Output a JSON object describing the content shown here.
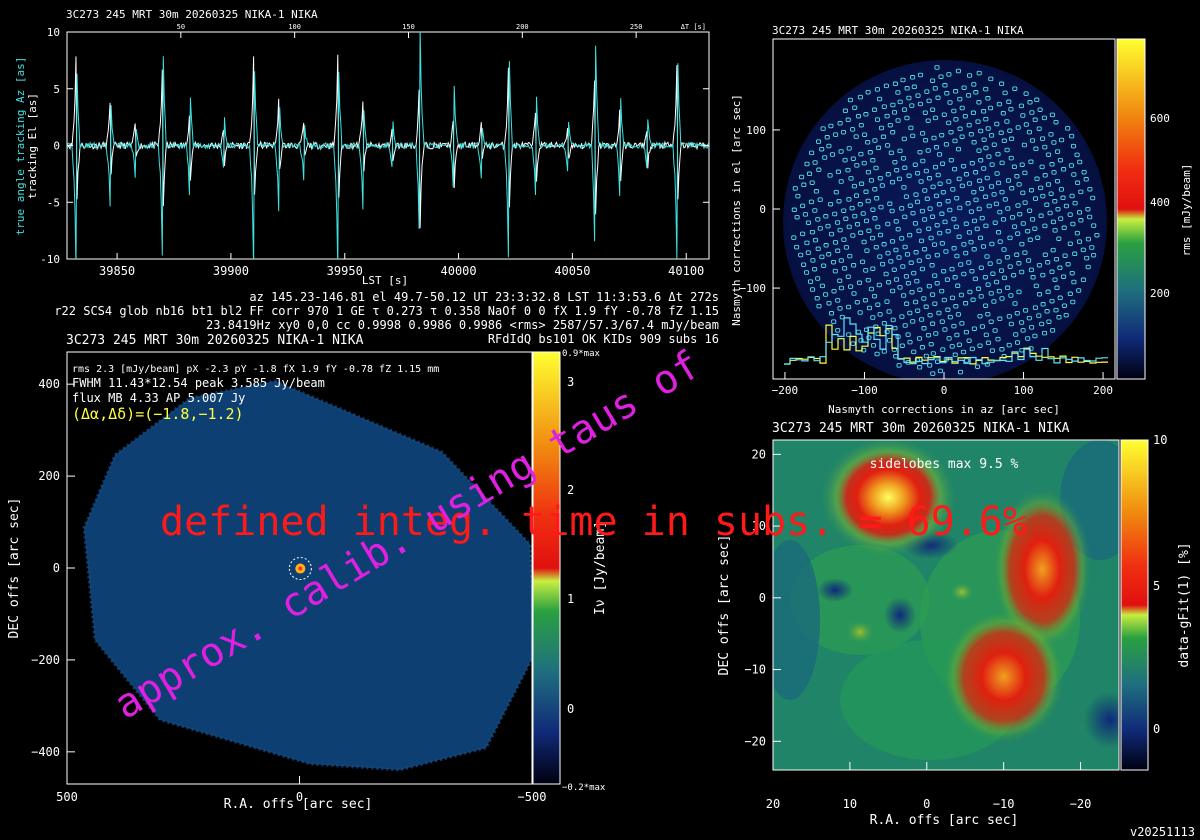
{
  "version": "v20251113",
  "overlays": {
    "wm1": "defined integ. time in subs. = 69.6%",
    "wm2": "approx. calib. using taus of",
    "wm_red_color": "#ff1a1a",
    "wm_mag_color": "#e020e0"
  },
  "panel_tracking": {
    "header": "3C273     245 MRT 30m  20260325 NIKA-1 NIKA",
    "top_ticks": [
      "50",
      "100",
      "150",
      "200",
      "250",
      "ΔT [s]"
    ],
    "xlabel": "LST [s]",
    "ylabel_cyan": "true angle tracking Az [as]",
    "ylabel_white": "tracking El [as]",
    "info": [
      "az 145.23-146.81 el 49.7-50.12 UT 23:3:32.8 LST 11:3:53.6 Δt 272s",
      "r22 SCS4 glob nb16 bt1 bl2 FF corr 970 1 GE τ 0.273 τ 0.358 NaOf 0 0 fX 1.9 fY -0.78 fZ 1.15",
      "23.8419Hz xy0 0,0 cc 0.9998 0.9986 0.9986 <rms> 2587/57.3/67.4 mJy/beam",
      "RFdIdQ bs101 OK KIDs 909 subs 16"
    ]
  },
  "panel_map": {
    "header": "3C273    245 MRT 30m  20260325 NIKA-1 NIKA",
    "info": [
      "rms 2.3 [mJy/beam] pX -2.3 pY -1.8 fX 1.9 fY -0.78 fZ 1.15 mm",
      "FWHM 11.43*12.54 peak 3.585 Jy/beam",
      "flux MB 4.33 AP 5.007 Jy",
      "(Δα,Δδ)=(−1.8,−1.2)"
    ],
    "xlabel": "R.A. offs [arc sec]",
    "ylabel": "DEC offs [arc sec]",
    "cbar_label": "Iν [Jy/beam]",
    "cbar_top": "0.9*max",
    "cbar_bottom": "−0.2*max",
    "cbar_ticks": [
      "3",
      "2",
      "1",
      "0"
    ]
  },
  "panel_kids": {
    "header": "3C273     245 MRT 30m  20260325 NIKA-1 NIKA",
    "xlabel": "Nasmyth corrections in az [arc sec]",
    "ylabel": "Nasmyth corrections in el [arc sec]",
    "cbar_label": "rms [mJy/beam]",
    "cbar_ticks": [
      "600",
      "400",
      "200"
    ]
  },
  "panel_residual": {
    "header": "3C273     245 MRT 30m  20260325 NIKA-1 NIKA",
    "annotation": "sidelobes max 9.5 %",
    "xlabel": "R.A. offs [arc sec]",
    "ylabel": "DEC offs [arc sec]",
    "cbar_label": "data-gFit(1) [%]",
    "cbar_ticks": [
      "10",
      "5",
      "0"
    ]
  },
  "chart_data": [
    {
      "type": "line",
      "x_axis": "LST [s]",
      "xlim": [
        39828,
        40110
      ],
      "ylim": [
        -10,
        10
      ],
      "x_ticks": [
        39850,
        39900,
        39950,
        40000,
        40050,
        40100
      ],
      "y_ticks": [
        -10,
        -5,
        0,
        5,
        10
      ],
      "top_x_ticks": [
        50,
        100,
        150,
        200,
        250
      ],
      "spike_lst": [
        39832,
        39847,
        39858,
        39870,
        39882,
        39897,
        39910,
        39921,
        39932,
        39947,
        39958,
        39971,
        39983,
        39998,
        40010,
        40022,
        40034,
        40048,
        40060,
        40071,
        40083,
        40096
      ],
      "series": [
        {
          "name": "true angle tracking Az [as]",
          "color": "#40e0e0"
        },
        {
          "name": "tracking El [as]",
          "color": "#ffffff"
        }
      ]
    },
    {
      "type": "heatmap",
      "xlim": [
        500,
        -500
      ],
      "ylim": [
        -470,
        470
      ],
      "x_ticks": [
        500,
        0,
        -500
      ],
      "y_ticks": [
        -400,
        -200,
        0,
        200,
        400
      ],
      "source_offset": [
        -1.8,
        -1.2
      ],
      "peak_jy_per_beam": 3.585
    },
    {
      "type": "scatter",
      "xlim": [
        -215,
        215
      ],
      "ylim": [
        -215,
        215
      ],
      "x_ticks": [
        -200,
        -100,
        0,
        100,
        200
      ],
      "y_ticks": [
        -100,
        0,
        100
      ],
      "cbar_range": [
        0,
        700
      ],
      "kids_count": 909,
      "histogram_series": [
        {
          "color": "#ffff40"
        },
        {
          "color": "#60e0ff"
        }
      ]
    },
    {
      "type": "heatmap",
      "xlim": [
        20,
        -25
      ],
      "ylim": [
        -24,
        22
      ],
      "x_ticks": [
        20,
        10,
        0,
        -10,
        -20
      ],
      "y_ticks": [
        -20,
        -10,
        0,
        10,
        20
      ],
      "cbar_range": [
        -2,
        10
      ],
      "blobs": [
        {
          "x": 5,
          "y": 14,
          "amp": 10
        },
        {
          "x": -15,
          "y": 4,
          "amp": 8
        },
        {
          "x": -10,
          "y": -11,
          "amp": 8
        }
      ]
    }
  ]
}
